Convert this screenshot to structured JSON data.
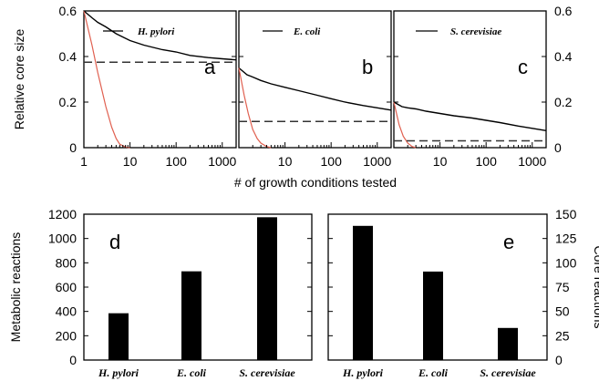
{
  "chart_data": [
    {
      "id": "a",
      "type": "line",
      "panel_label": "a",
      "legend": "H. pylori",
      "ylabel": "Relative core size",
      "xscale": "log",
      "xlim": [
        1,
        2000
      ],
      "ylim": [
        0,
        0.6
      ],
      "xticks": [
        "1",
        "10",
        "100",
        "1000"
      ],
      "yticks": [
        "0",
        "0.2",
        "0.4",
        "0.6"
      ],
      "series": [
        {
          "role": "observed",
          "color": "#000000",
          "style": "solid",
          "x": [
            1,
            1.5,
            2,
            3,
            5,
            10,
            20,
            50,
            100,
            200,
            500,
            1000,
            2000
          ],
          "y": [
            0.6,
            0.57,
            0.55,
            0.53,
            0.5,
            0.47,
            0.45,
            0.43,
            0.42,
            0.405,
            0.395,
            0.39,
            0.385
          ]
        },
        {
          "role": "random",
          "color": "#e06050",
          "style": "solid",
          "x": [
            1,
            1.5,
            2,
            3,
            4,
            5,
            6,
            8,
            10
          ],
          "y": [
            0.6,
            0.45,
            0.33,
            0.18,
            0.09,
            0.04,
            0.015,
            0.003,
            0
          ]
        },
        {
          "role": "limit",
          "color": "#333333",
          "style": "dashed",
          "x": [
            1,
            2000
          ],
          "y": [
            0.375,
            0.375
          ]
        }
      ]
    },
    {
      "id": "b",
      "type": "line",
      "panel_label": "b",
      "legend": "E. coli",
      "xscale": "log",
      "xlim": [
        1,
        2000
      ],
      "ylim": [
        0,
        0.6
      ],
      "xticks": [
        "10",
        "100",
        "1000"
      ],
      "series": [
        {
          "role": "observed",
          "color": "#000000",
          "style": "solid",
          "x": [
            1,
            1.5,
            2,
            3,
            5,
            10,
            20,
            50,
            100,
            200,
            500,
            1000,
            2000
          ],
          "y": [
            0.35,
            0.32,
            0.31,
            0.295,
            0.28,
            0.265,
            0.25,
            0.23,
            0.215,
            0.2,
            0.185,
            0.175,
            0.165
          ]
        },
        {
          "role": "random",
          "color": "#e06050",
          "style": "solid",
          "x": [
            1,
            1.3,
            1.6,
            2,
            2.5,
            3,
            4,
            5
          ],
          "y": [
            0.35,
            0.23,
            0.15,
            0.08,
            0.04,
            0.02,
            0.005,
            0
          ]
        },
        {
          "role": "limit",
          "color": "#333333",
          "style": "dashed",
          "x": [
            1,
            2000
          ],
          "y": [
            0.115,
            0.115
          ]
        }
      ]
    },
    {
      "id": "c",
      "type": "line",
      "panel_label": "c",
      "legend": "S. cerevisiae",
      "xscale": "log",
      "xlim": [
        1,
        2000
      ],
      "ylim": [
        0,
        0.6
      ],
      "xticks": [
        "10",
        "100",
        "1000"
      ],
      "yticks_right": [
        "0",
        "0.2",
        "0.4",
        "0.6"
      ],
      "series": [
        {
          "role": "observed",
          "color": "#000000",
          "style": "solid",
          "x": [
            1,
            1.5,
            2,
            3,
            5,
            10,
            20,
            50,
            100,
            200,
            500,
            1000,
            2000
          ],
          "y": [
            0.2,
            0.18,
            0.175,
            0.17,
            0.16,
            0.15,
            0.14,
            0.13,
            0.12,
            0.11,
            0.095,
            0.085,
            0.075
          ]
        },
        {
          "role": "random",
          "color": "#e06050",
          "style": "solid",
          "x": [
            1,
            1.3,
            1.6,
            2,
            2.5,
            3
          ],
          "y": [
            0.2,
            0.1,
            0.05,
            0.02,
            0.005,
            0
          ]
        },
        {
          "role": "limit",
          "color": "#333333",
          "style": "dashed",
          "x": [
            1,
            2000
          ],
          "y": [
            0.03,
            0.03
          ]
        }
      ]
    },
    {
      "id": "d",
      "type": "bar",
      "panel_label": "d",
      "ylabel": "Metabolic reactions",
      "ylim": [
        0,
        1200
      ],
      "yticks": [
        "0",
        "200",
        "400",
        "600",
        "800",
        "1000",
        "1200"
      ],
      "categories": [
        "H. pylori",
        "E. coli",
        "S. cerevisiae"
      ],
      "values": [
        385,
        730,
        1175
      ]
    },
    {
      "id": "e",
      "type": "bar",
      "panel_label": "e",
      "ylabel": "Core reactions",
      "ylim": [
        0,
        150
      ],
      "yticks": [
        "0",
        "25",
        "50",
        "75",
        "100",
        "125",
        "150"
      ],
      "categories": [
        "H. pylori",
        "E. coli",
        "S. cerevisiae"
      ],
      "values": [
        138,
        91,
        33
      ]
    }
  ],
  "shared_xlabel": "# of growth conditions tested"
}
